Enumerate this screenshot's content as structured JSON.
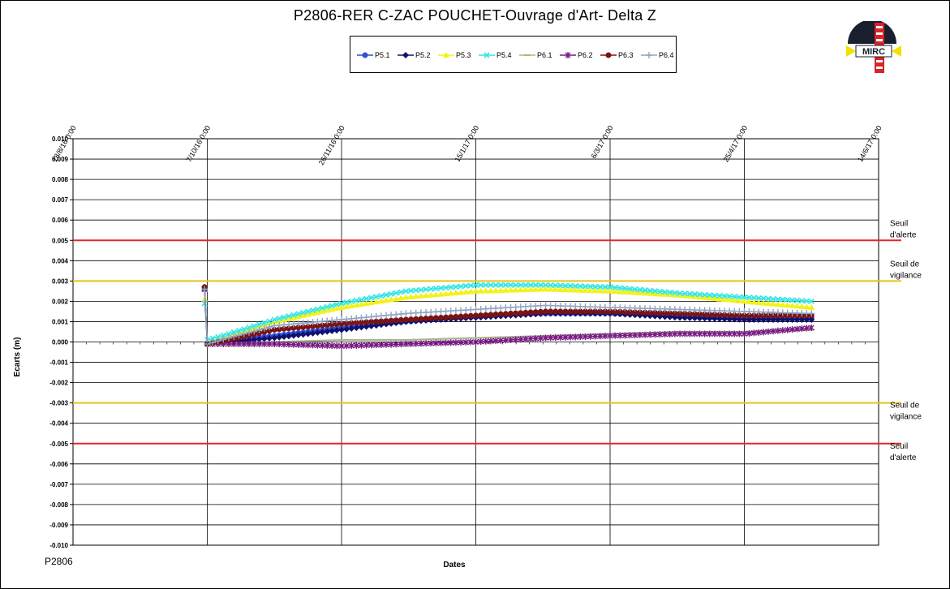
{
  "chart_data": {
    "type": "line",
    "title": "P2806-RER  C-ZAC  POUCHET-Ouvrage  d'Art- Delta Z",
    "xlabel": "Dates",
    "ylabel": "Ecarts (m)",
    "footer": "P2806",
    "logo_text": "MIRC",
    "ylim": [
      -0.01,
      0.01
    ],
    "y_ticks": [
      0.01,
      0.009,
      0.008,
      0.007,
      0.006,
      0.005,
      0.004,
      0.003,
      0.002,
      0.001,
      0.0,
      -0.001,
      -0.002,
      -0.003,
      -0.004,
      -0.005,
      -0.006,
      -0.007,
      -0.008,
      -0.009,
      -0.01
    ],
    "y_tick_labels": [
      "0.010",
      "0.009",
      "0.008",
      "0.007",
      "0.006",
      "0.005",
      "0.004",
      "0.003",
      "0.002",
      "0.001",
      "0.000",
      "-0.001",
      "-0.002",
      "-0.003",
      "-0.004",
      "-0.005",
      "-0.006",
      "-0.007",
      "-0.008",
      "-0.009",
      "-0.010"
    ],
    "x_tick_labels": [
      "18/8/16 0:00",
      "7/10/16 0:00",
      "26/11/16 0:00",
      "15/1/17 0:00",
      "6/3/17 0:00",
      "25/4/17 0:00",
      "14/6/17 0:00"
    ],
    "xlim": [
      "2016-08-18",
      "2017-06-14"
    ],
    "grid": true,
    "legend_position": "top",
    "thresholds": [
      {
        "value": 0.005,
        "label_lines": [
          "Seuil",
          "d'alerte"
        ],
        "color": "#e8232b"
      },
      {
        "value": 0.003,
        "label_lines": [
          "Seuil de",
          "vigilance"
        ],
        "color": "#e8c41a"
      },
      {
        "value": -0.003,
        "label_lines": [
          "Seuil de",
          "vigilance"
        ],
        "color": "#e8c41a"
      },
      {
        "value": -0.005,
        "label_lines": [
          "Seuil",
          "d'alerte"
        ],
        "color": "#e8232b"
      }
    ],
    "series": [
      {
        "name": "P5.1",
        "color": "#2e4fd6",
        "marker": "circle",
        "x": [
          "2016-10-06",
          "2016-10-07",
          "2016-10-15",
          "2016-11-01",
          "2016-11-26",
          "2016-12-20",
          "2017-01-15",
          "2017-02-10",
          "2017-03-06",
          "2017-04-01",
          "2017-04-25",
          "2017-05-20"
        ],
        "values": [
          0.0026,
          -0.0001,
          0.0001,
          0.0003,
          0.0007,
          0.001,
          0.0013,
          0.0014,
          0.0014,
          0.0013,
          0.0012,
          0.0012
        ]
      },
      {
        "name": "P5.2",
        "color": "#10106e",
        "marker": "diamond",
        "x": [
          "2016-10-06",
          "2016-10-07",
          "2016-10-15",
          "2016-11-01",
          "2016-11-26",
          "2016-12-20",
          "2017-01-15",
          "2017-02-10",
          "2017-03-06",
          "2017-04-01",
          "2017-04-25",
          "2017-05-20"
        ],
        "values": [
          0.0027,
          -0.0001,
          0.0,
          0.0002,
          0.0006,
          0.001,
          0.0012,
          0.0014,
          0.0014,
          0.0012,
          0.0011,
          0.0011
        ]
      },
      {
        "name": "P5.3",
        "color": "#f2f21a",
        "marker": "triangle",
        "x": [
          "2016-10-06",
          "2016-10-07",
          "2016-10-15",
          "2016-11-01",
          "2016-11-26",
          "2016-12-20",
          "2017-01-15",
          "2017-02-10",
          "2017-03-06",
          "2017-04-01",
          "2017-04-25",
          "2017-05-20"
        ],
        "values": [
          0.0021,
          0.0,
          0.0003,
          0.001,
          0.0017,
          0.0022,
          0.0025,
          0.0026,
          0.0025,
          0.0023,
          0.002,
          0.0017
        ]
      },
      {
        "name": "P5.4",
        "color": "#33e5e5",
        "marker": "x",
        "x": [
          "2016-10-06",
          "2016-10-07",
          "2016-10-15",
          "2016-11-01",
          "2016-11-26",
          "2016-12-20",
          "2017-01-15",
          "2017-02-10",
          "2017-03-06",
          "2017-04-01",
          "2017-04-25",
          "2017-05-20"
        ],
        "values": [
          0.0019,
          0.0001,
          0.0004,
          0.0011,
          0.0019,
          0.0025,
          0.0028,
          0.0028,
          0.0027,
          0.0024,
          0.0022,
          0.002
        ]
      },
      {
        "name": "P6.1",
        "color": "#a6b78a",
        "marker": "dash",
        "x": [
          "2016-10-06",
          "2016-10-07",
          "2016-10-15",
          "2016-11-01",
          "2016-11-26",
          "2016-12-20",
          "2017-01-15",
          "2017-02-10",
          "2017-03-06",
          "2017-04-01",
          "2017-04-25",
          "2017-05-20"
        ],
        "values": [
          0.0025,
          -0.0001,
          -0.0001,
          0.0,
          0.0001,
          0.0001,
          0.0002,
          0.0003,
          0.0004,
          0.0005,
          0.0005,
          0.0006
        ]
      },
      {
        "name": "P6.2",
        "color": "#7a1a85",
        "marker": "asterisk",
        "x": [
          "2016-10-06",
          "2016-10-07",
          "2016-10-15",
          "2016-11-01",
          "2016-11-26",
          "2016-12-20",
          "2017-01-15",
          "2017-02-10",
          "2017-03-06",
          "2017-04-01",
          "2017-04-25",
          "2017-05-20"
        ],
        "values": [
          0.0026,
          -0.0001,
          -0.0001,
          -0.0001,
          -0.0002,
          -0.0001,
          0.0,
          0.0002,
          0.0003,
          0.0004,
          0.0004,
          0.0007
        ]
      },
      {
        "name": "P6.3",
        "color": "#7a1414",
        "marker": "circle",
        "x": [
          "2016-10-06",
          "2016-10-07",
          "2016-10-15",
          "2016-11-01",
          "2016-11-26",
          "2016-12-20",
          "2017-01-15",
          "2017-02-10",
          "2017-03-06",
          "2017-04-01",
          "2017-04-25",
          "2017-05-20"
        ],
        "values": [
          0.0027,
          -0.0001,
          0.0001,
          0.0006,
          0.0009,
          0.0011,
          0.0013,
          0.0015,
          0.0015,
          0.0014,
          0.0013,
          0.0013
        ]
      },
      {
        "name": "P6.4",
        "color": "#8fa3c2",
        "marker": "plus",
        "x": [
          "2016-10-06",
          "2016-10-07",
          "2016-10-15",
          "2016-11-01",
          "2016-11-26",
          "2016-12-20",
          "2017-01-15",
          "2017-02-10",
          "2017-03-06",
          "2017-04-01",
          "2017-04-25",
          "2017-05-20"
        ],
        "values": [
          0.0026,
          -0.0001,
          0.0002,
          0.0008,
          0.0011,
          0.0014,
          0.0016,
          0.0018,
          0.0017,
          0.0016,
          0.0015,
          0.0014
        ]
      }
    ]
  }
}
